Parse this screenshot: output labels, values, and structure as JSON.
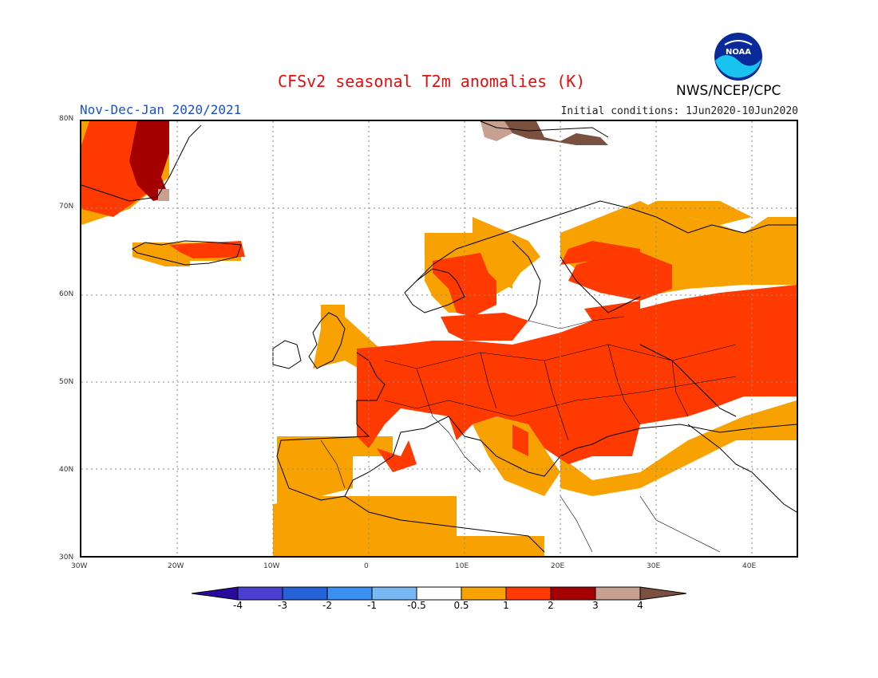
{
  "header": {
    "title": "CFSv2 seasonal T2m anomalies (K)",
    "season": "Nov-Dec-Jan 2020/2021",
    "initial_conditions": "Initial conditions: 1Jun2020-10Jun2020",
    "agency": "NWS/NCEP/CPC",
    "logo_text": "NOAA"
  },
  "map": {
    "lat_labels": [
      "80N",
      "70N",
      "60N",
      "50N",
      "40N",
      "30N"
    ],
    "lon_labels": [
      "30W",
      "20W",
      "10W",
      "0",
      "10E",
      "20E",
      "30E",
      "40E"
    ],
    "lat_range": [
      30,
      80
    ],
    "lon_range": [
      -30,
      45
    ]
  },
  "colorbar": {
    "labels": [
      "-4",
      "-3",
      "-2",
      "-1",
      "-0.5",
      "0.5",
      "1",
      "2",
      "3",
      "4"
    ],
    "colors": {
      "lt_-4": "#2a0a9a",
      "-4_-3": "#4a3fd0",
      "-3_-2": "#2464d8",
      "-2_-1": "#3a8ff0",
      "-1_-0.5": "#7ab8f5",
      "-0.5_0.5": "#ffffff",
      "0.5_1": "#f7a200",
      "1_2": "#ff3a00",
      "2_3": "#a40000",
      "3_4": "#c8a090",
      "gt_4": "#7a5040"
    }
  }
}
